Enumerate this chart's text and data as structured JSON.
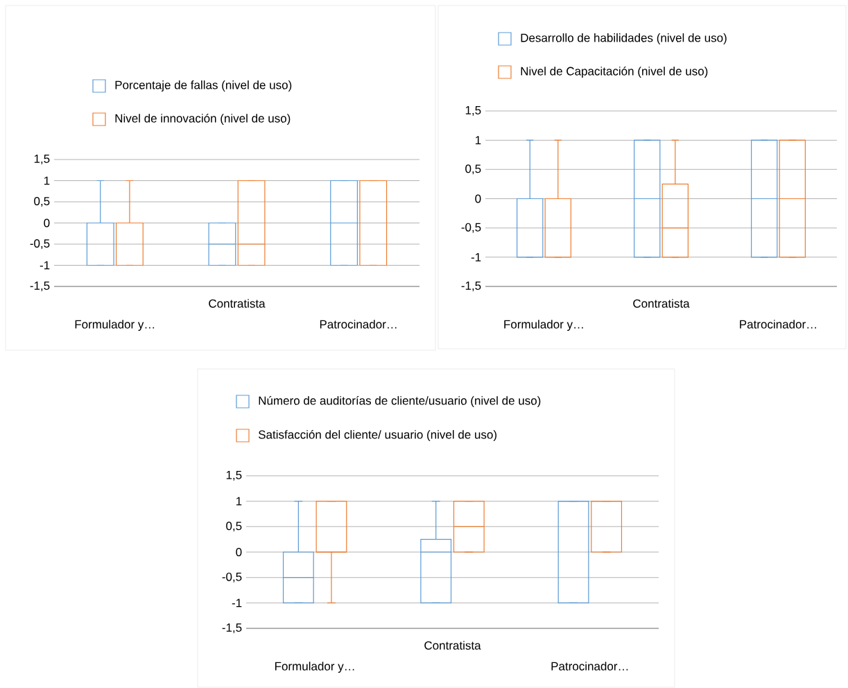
{
  "chart_data": [
    {
      "type": "box",
      "categories": [
        "Formulador y…",
        "Contratista",
        "Patrocinador…"
      ],
      "series": [
        {
          "name": "Porcentaje de fallas (nivel de uso)",
          "color": "#5b9bd5",
          "boxes": [
            {
              "low": -1,
              "q1": -1,
              "median": 0,
              "q3": 0,
              "high": 1
            },
            {
              "low": -1,
              "q1": -1,
              "median": -0.5,
              "q3": 0,
              "high": 0
            },
            {
              "low": -1,
              "q1": -1,
              "median": 0,
              "q3": 1,
              "high": 1
            }
          ]
        },
        {
          "name": "Nivel de innovación (nivel de uso)",
          "color": "#ed7d31",
          "boxes": [
            {
              "low": -1,
              "q1": -1,
              "median": 0,
              "q3": 0,
              "high": 1
            },
            {
              "low": -1,
              "q1": -1,
              "median": -0.5,
              "q3": 1,
              "high": 1
            },
            {
              "low": -1,
              "q1": -1,
              "median": 1,
              "q3": 1,
              "high": 1
            }
          ]
        }
      ],
      "ylim": [
        -1.5,
        1.5
      ],
      "yticks": [
        {
          "value": -1.5,
          "label": "-1,5"
        },
        -1,
        {
          "value": -0.5,
          "label": "-0,5"
        },
        0,
        {
          "value": 0.5,
          "label": "0,5"
        },
        1,
        {
          "value": 1.5,
          "label": "1,5"
        }
      ],
      "grid": "y",
      "legend": "top"
    },
    {
      "type": "box",
      "categories": [
        "Formulador y…",
        "Contratista",
        "Patrocinador…"
      ],
      "series": [
        {
          "name": "Desarrollo de habilidades (nivel de uso)",
          "color": "#5b9bd5",
          "boxes": [
            {
              "low": -1,
              "q1": -1,
              "median": 0,
              "q3": 0,
              "high": 1
            },
            {
              "low": -1,
              "q1": -1,
              "median": 0,
              "q3": 1,
              "high": 1
            },
            {
              "low": -1,
              "q1": -1,
              "median": 0,
              "q3": 1,
              "high": 1
            }
          ]
        },
        {
          "name": "Nivel de Capacitación (nivel de uso)",
          "color": "#ed7d31",
          "boxes": [
            {
              "low": -1,
              "q1": -1,
              "median": 0,
              "q3": 0,
              "high": 1
            },
            {
              "low": -1,
              "q1": -1,
              "median": -0.5,
              "q3": 0.25,
              "high": 1
            },
            {
              "low": -1,
              "q1": -1,
              "median": 0,
              "q3": 1,
              "high": 1
            }
          ]
        }
      ],
      "ylim": [
        -1.5,
        1.5
      ],
      "yticks": [
        {
          "value": -1.5,
          "label": "-1,5"
        },
        -1,
        {
          "value": -0.5,
          "label": "-0,5"
        },
        0,
        {
          "value": 0.5,
          "label": "0,5"
        },
        1,
        {
          "value": 1.5,
          "label": "1,5"
        }
      ],
      "grid": "y",
      "legend": "top"
    },
    {
      "type": "box",
      "categories": [
        "Formulador y…",
        "Contratista",
        "Patrocinador…"
      ],
      "series": [
        {
          "name": "Número de auditorías de cliente/usuario (nivel de uso)",
          "color": "#5b9bd5",
          "boxes": [
            {
              "low": -1,
              "q1": -1,
              "median": -0.5,
              "q3": 0,
              "high": 1
            },
            {
              "low": -1,
              "q1": -1,
              "median": 0,
              "q3": 0.25,
              "high": 1
            },
            {
              "low": -1,
              "q1": -1,
              "median": 1,
              "q3": 1,
              "high": 1
            }
          ]
        },
        {
          "name": "Satisfacción del cliente/ usuario (nivel de uso)",
          "color": "#ed7d31",
          "boxes": [
            {
              "low": -1,
              "q1": 0,
              "median": 0,
              "q3": 1,
              "high": 1
            },
            {
              "low": 0,
              "q1": 0,
              "median": 0.5,
              "q3": 1,
              "high": 1
            },
            {
              "low": 0,
              "q1": 0,
              "median": 1,
              "q3": 1,
              "high": 1
            }
          ]
        }
      ],
      "ylim": [
        -1.5,
        1.5
      ],
      "yticks": [
        {
          "value": -1.5,
          "label": "-1,5"
        },
        -1,
        {
          "value": -0.5,
          "label": "-0,5"
        },
        0,
        {
          "value": 0.5,
          "label": "0,5"
        },
        1,
        {
          "value": 1.5,
          "label": "1,5"
        }
      ],
      "grid": "y",
      "legend": "top"
    }
  ]
}
